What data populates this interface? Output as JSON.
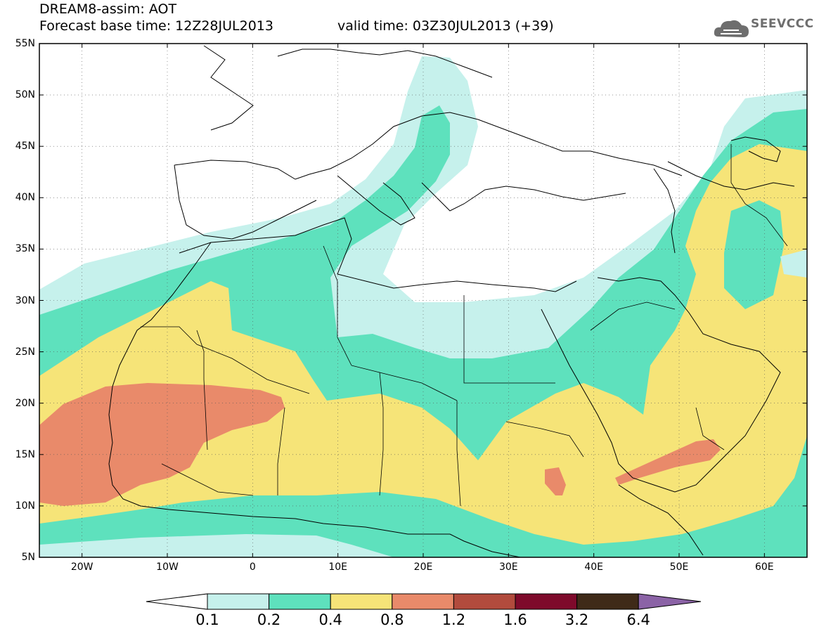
{
  "header": {
    "title_line1": "DREAM8-assim: AOT",
    "base_time": "Forecast base time: 12Z28JUL2013",
    "valid_time": "valid time: 03Z30JUL2013 (+39)",
    "logo_text": "SEEVCCC",
    "logo_icon": "cloud-icon"
  },
  "map": {
    "projection": "equirectangular",
    "extent": {
      "lon": [
        -25,
        65
      ],
      "lat": [
        5,
        55
      ]
    },
    "lat_labels": [
      "55N",
      "50N",
      "45N",
      "40N",
      "35N",
      "30N",
      "25N",
      "20N",
      "15N",
      "10N",
      "5N"
    ],
    "lon_labels": [
      "20W",
      "10W",
      "0",
      "10E",
      "20E",
      "30E",
      "40E",
      "50E",
      "60E"
    ],
    "grid": "dotted"
  },
  "legend": {
    "thresholds": [
      "0.1",
      "0.2",
      "0.4",
      "0.8",
      "1.2",
      "1.6",
      "3.2",
      "6.4"
    ],
    "colors": [
      "#ffffff",
      "#c6f1ec",
      "#5ee1bd",
      "#f6e478",
      "#e98a6a",
      "#b24b3d",
      "#7e0a2b",
      "#3f2a18",
      "#8b63a6"
    ]
  },
  "colors": {
    "c01": "#c6f1ec",
    "c02": "#5ee1bd",
    "c04": "#f6e478",
    "c08": "#e98a6a"
  }
}
